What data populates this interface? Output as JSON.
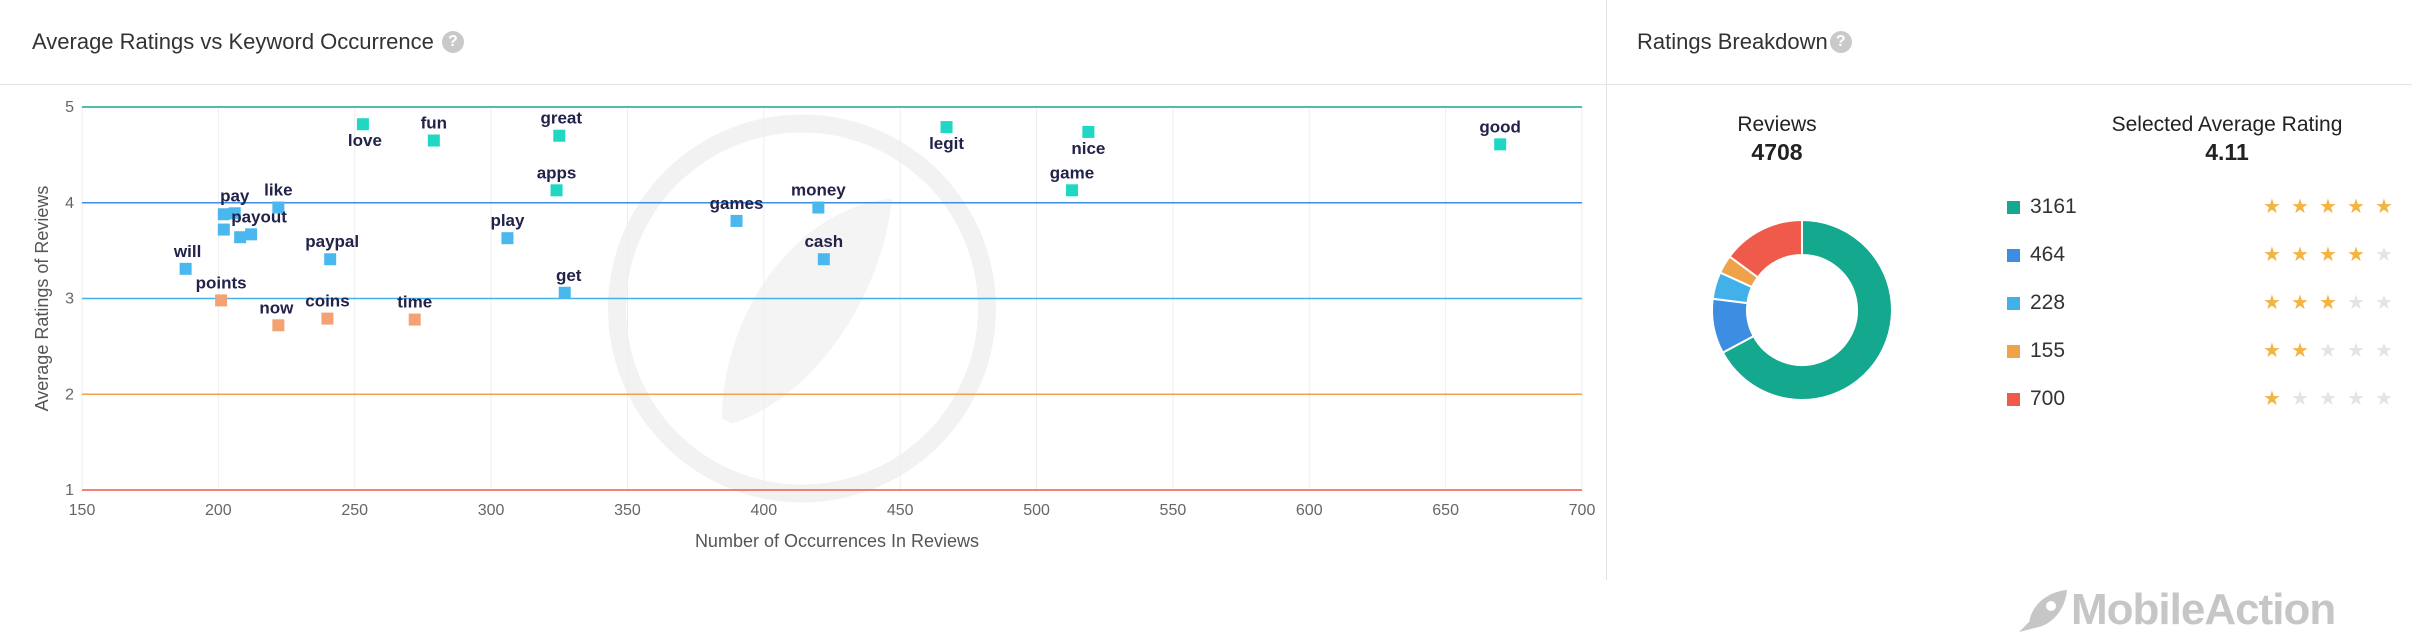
{
  "left_panel": {
    "title": "Average Ratings vs Keyword Occurrence"
  },
  "right_panel": {
    "title": "Ratings Breakdown",
    "reviews_label": "Reviews",
    "reviews_value": "4708",
    "avg_label": "Selected Average Rating",
    "avg_value": "4.11",
    "breakdown": [
      {
        "stars": 5,
        "count": "3161",
        "color": "#14a88e"
      },
      {
        "stars": 4,
        "count": "464",
        "color": "#3d8ee3"
      },
      {
        "stars": 3,
        "count": "228",
        "color": "#42b1ea"
      },
      {
        "stars": 2,
        "count": "155",
        "color": "#f0a24b"
      },
      {
        "stars": 1,
        "count": "700",
        "color": "#ef5a4a"
      }
    ]
  },
  "watermark": {
    "brand": "MobileAction"
  },
  "chart_data": {
    "type": "scatter",
    "title": "Average Ratings vs Keyword Occurrence",
    "xlabel": "Number of Occurrences In Reviews",
    "ylabel": "Average Ratings of Reviews",
    "xlim": [
      150,
      700
    ],
    "ylim": [
      1,
      5
    ],
    "xticks": [
      150,
      200,
      250,
      300,
      350,
      400,
      450,
      500,
      550,
      600,
      650,
      700
    ],
    "yticks": [
      1,
      2,
      3,
      4,
      5
    ],
    "reference_lines": [
      {
        "y": 5,
        "color": "#14a88e"
      },
      {
        "y": 4,
        "color": "#3d8ee3"
      },
      {
        "y": 3,
        "color": "#42b1ea"
      },
      {
        "y": 2,
        "color": "#f0a24b"
      },
      {
        "y": 1,
        "color": "#ef5a4a"
      }
    ],
    "points": [
      {
        "label": "love",
        "x": 253,
        "y": 4.82,
        "color": "#1fd7c2"
      },
      {
        "label": "fun",
        "x": 279,
        "y": 4.65,
        "color": "#1fd7c2"
      },
      {
        "label": "great",
        "x": 325,
        "y": 4.7,
        "color": "#1fd7c2"
      },
      {
        "label": "legit",
        "x": 467,
        "y": 4.79,
        "color": "#1fd7c2"
      },
      {
        "label": "nice",
        "x": 519,
        "y": 4.74,
        "color": "#1fd7c2"
      },
      {
        "label": "good",
        "x": 670,
        "y": 4.61,
        "color": "#1fd7c2"
      },
      {
        "label": "apps",
        "x": 324,
        "y": 4.13,
        "color": "#1fd7c2"
      },
      {
        "label": "game",
        "x": 513,
        "y": 4.13,
        "color": "#1fd7c2"
      },
      {
        "label": "pay",
        "x": 206,
        "y": 3.89,
        "color": "#4ab8ee"
      },
      {
        "label": "like",
        "x": 222,
        "y": 3.95,
        "color": "#4ab8ee"
      },
      {
        "label": "",
        "x": 202,
        "y": 3.88,
        "color": "#4ab8ee"
      },
      {
        "label": "",
        "x": 202,
        "y": 3.72,
        "color": "#4ab8ee"
      },
      {
        "label": "payout",
        "x": 212,
        "y": 3.67,
        "color": "#4ab8ee"
      },
      {
        "label": "",
        "x": 208,
        "y": 3.64,
        "color": "#4ab8ee"
      },
      {
        "label": "money",
        "x": 420,
        "y": 3.95,
        "color": "#4ab8ee"
      },
      {
        "label": "games",
        "x": 390,
        "y": 3.81,
        "color": "#4ab8ee"
      },
      {
        "label": "play",
        "x": 306,
        "y": 3.63,
        "color": "#4ab8ee"
      },
      {
        "label": "paypal",
        "x": 241,
        "y": 3.41,
        "color": "#4ab8ee"
      },
      {
        "label": "cash",
        "x": 422,
        "y": 3.41,
        "color": "#4ab8ee"
      },
      {
        "label": "will",
        "x": 188,
        "y": 3.31,
        "color": "#4ab8ee"
      },
      {
        "label": "get",
        "x": 327,
        "y": 3.06,
        "color": "#4ab8ee"
      },
      {
        "label": "points",
        "x": 201,
        "y": 2.98,
        "color": "#f4a273"
      },
      {
        "label": "coins",
        "x": 240,
        "y": 2.79,
        "color": "#f4a273"
      },
      {
        "label": "time",
        "x": 272,
        "y": 2.78,
        "color": "#f4a273"
      },
      {
        "label": "now",
        "x": 222,
        "y": 2.72,
        "color": "#f4a273"
      }
    ],
    "grid": true,
    "legend": "none"
  }
}
